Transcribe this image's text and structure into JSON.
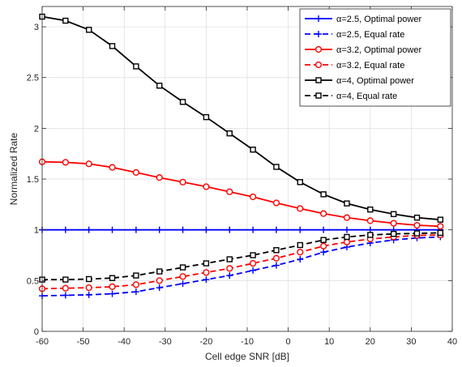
{
  "chart_data": {
    "type": "line",
    "xlabel": "Cell edge SNR [dB]",
    "ylabel": "Normalized Rate",
    "xlim": [
      -60,
      40
    ],
    "ylim": [
      0,
      3.2
    ],
    "xticks": [
      -60,
      -50,
      -40,
      -30,
      -20,
      -10,
      0,
      10,
      20,
      30,
      40
    ],
    "yticks": [
      0,
      0.5,
      1,
      1.5,
      2,
      2.5,
      3
    ],
    "ytick_labels": [
      "0",
      "0.5",
      "1",
      "1.5",
      "2",
      "2.5",
      "3"
    ],
    "grid": true,
    "legend_position": "top-right",
    "x": [
      -60,
      -54.3,
      -48.6,
      -42.9,
      -37.1,
      -31.4,
      -25.7,
      -20,
      -14.3,
      -8.6,
      -2.9,
      2.9,
      8.6,
      14.3,
      20,
      25.7,
      31.4,
      37.1
    ],
    "series": [
      {
        "name": "α=2.5, Optimal power",
        "color": "#0000ff",
        "dash": "solid",
        "marker": "plus",
        "values": [
          1,
          1,
          1,
          1,
          1,
          1,
          1,
          1,
          1,
          1,
          1,
          1,
          1,
          1,
          1,
          1,
          1,
          1
        ]
      },
      {
        "name": "α=2.5, Equal rate",
        "color": "#0000ff",
        "dash": "dashed",
        "marker": "plus",
        "values": [
          0.35,
          0.355,
          0.36,
          0.37,
          0.39,
          0.43,
          0.47,
          0.51,
          0.55,
          0.6,
          0.65,
          0.71,
          0.78,
          0.83,
          0.87,
          0.9,
          0.92,
          0.93
        ]
      },
      {
        "name": "α=3.2, Optimal power",
        "color": "#ff0000",
        "dash": "solid",
        "marker": "circle",
        "values": [
          1.67,
          1.665,
          1.65,
          1.615,
          1.565,
          1.515,
          1.47,
          1.425,
          1.375,
          1.325,
          1.265,
          1.21,
          1.16,
          1.12,
          1.09,
          1.065,
          1.045,
          1.035
        ]
      },
      {
        "name": "α=3.2, Equal rate",
        "color": "#ff0000",
        "dash": "dashed",
        "marker": "circle",
        "values": [
          0.42,
          0.425,
          0.43,
          0.44,
          0.46,
          0.5,
          0.54,
          0.58,
          0.62,
          0.67,
          0.72,
          0.78,
          0.84,
          0.88,
          0.91,
          0.93,
          0.945,
          0.95
        ]
      },
      {
        "name": "α=4, Optimal power",
        "color": "#000000",
        "dash": "solid",
        "marker": "square",
        "values": [
          3.1,
          3.06,
          2.97,
          2.81,
          2.61,
          2.42,
          2.26,
          2.11,
          1.95,
          1.79,
          1.62,
          1.47,
          1.35,
          1.26,
          1.2,
          1.155,
          1.12,
          1.1
        ]
      },
      {
        "name": "α=4, Equal rate",
        "color": "#000000",
        "dash": "dashed",
        "marker": "square",
        "values": [
          0.51,
          0.51,
          0.515,
          0.525,
          0.55,
          0.59,
          0.63,
          0.67,
          0.71,
          0.75,
          0.8,
          0.85,
          0.9,
          0.93,
          0.95,
          0.96,
          0.965,
          0.97
        ]
      }
    ]
  }
}
